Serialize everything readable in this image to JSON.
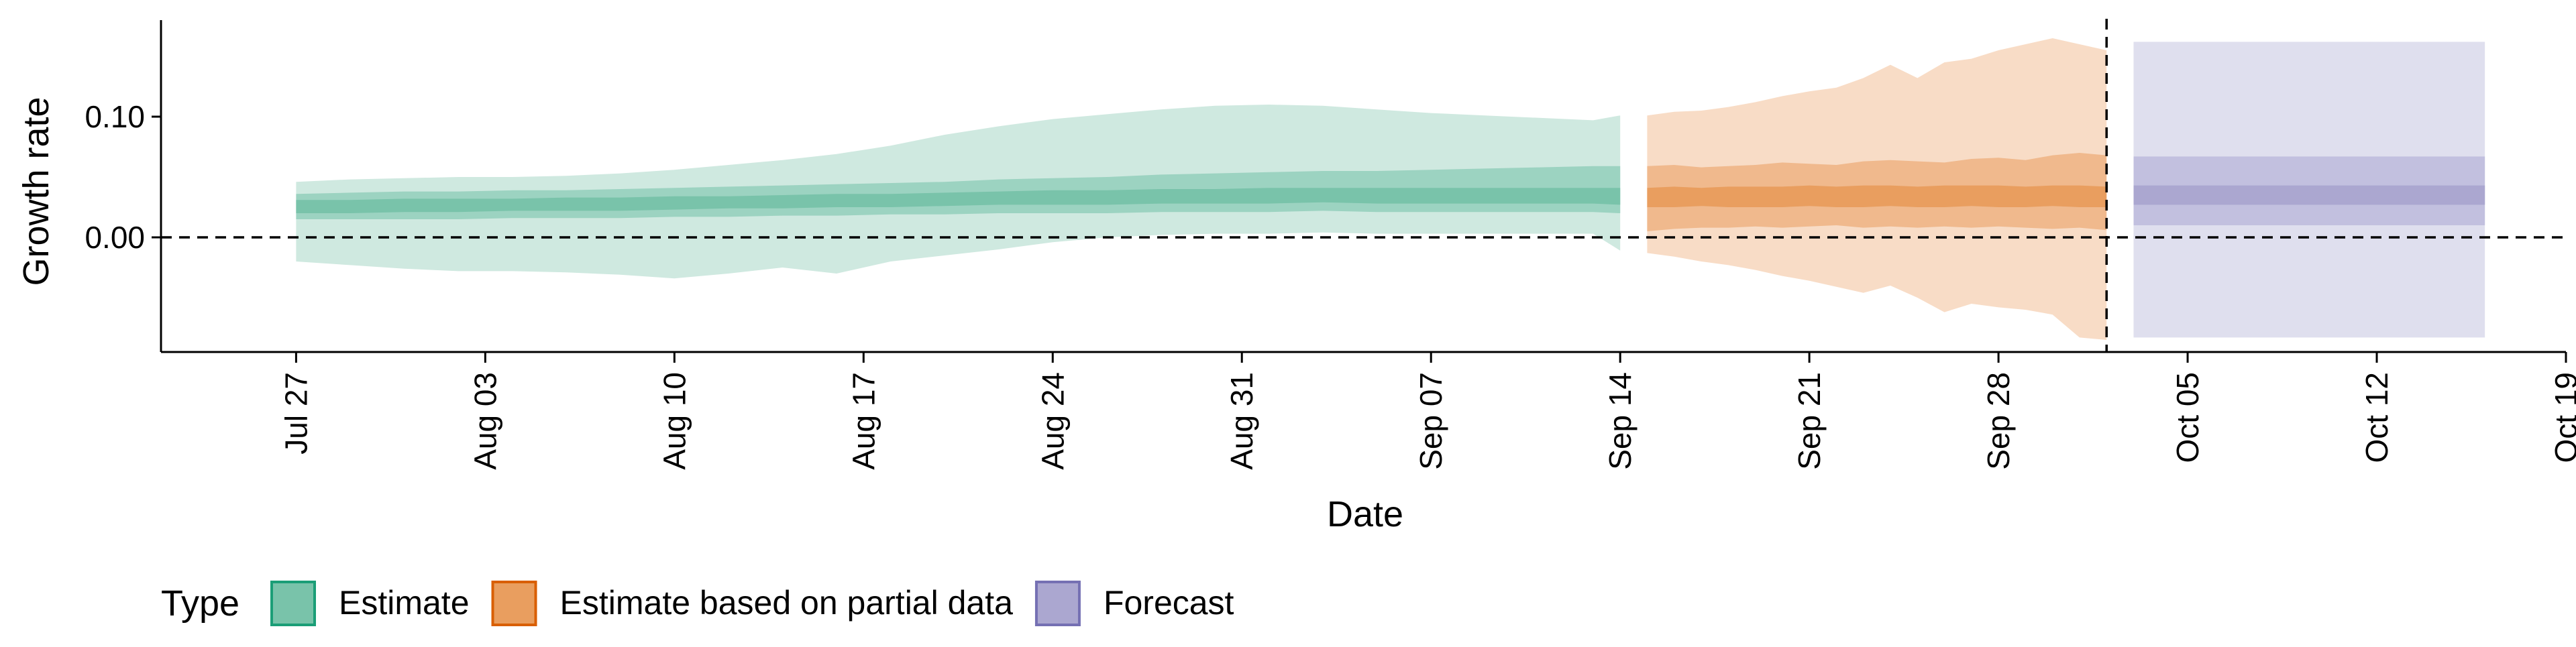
{
  "chart_data": {
    "type": "area",
    "xlabel": "Date",
    "ylabel": "Growth rate",
    "x_type": "date",
    "xlim": [
      "2020-07-22",
      "2020-10-19"
    ],
    "ylim": [
      -0.095,
      0.18
    ],
    "x_ticks": [
      "2020-07-27",
      "2020-08-03",
      "2020-08-10",
      "2020-08-17",
      "2020-08-24",
      "2020-08-31",
      "2020-09-07",
      "2020-09-14",
      "2020-09-21",
      "2020-09-28",
      "2020-10-05",
      "2020-10-12",
      "2020-10-19"
    ],
    "x_tick_labels": [
      "Jul 27",
      "Aug 03",
      "Aug 10",
      "Aug 17",
      "Aug 24",
      "Aug 31",
      "Sep 07",
      "Sep 14",
      "Sep 21",
      "Sep 28",
      "Oct 05",
      "Oct 12",
      "Oct 19"
    ],
    "y_ticks": [
      0.0,
      0.1
    ],
    "y_tick_labels": [
      "0.00",
      "0.10"
    ],
    "hline": 0.0,
    "vline": "2020-10-02",
    "grid": false,
    "legend": {
      "title": "Type",
      "position": "bottom-left",
      "entries": [
        "Estimate",
        "Estimate based on partial data",
        "Forecast"
      ]
    },
    "series": [
      {
        "name": "Estimate",
        "color": "#1b9e77",
        "band_colors": [
          "#cfe9e0",
          "#9cd3c1",
          "#79c3aa"
        ],
        "start": "2020-07-27",
        "end": "2020-09-14",
        "step_days": 2,
        "outer_lower": [
          -0.02,
          -0.023,
          -0.026,
          -0.028,
          -0.028,
          -0.029,
          -0.031,
          -0.034,
          -0.03,
          -0.025,
          -0.03,
          -0.02,
          -0.015,
          -0.01,
          -0.004,
          0.0,
          0.002,
          0.003,
          0.003,
          0.004,
          0.003,
          0.003,
          0.003,
          0.003,
          0.003,
          -0.011
        ],
        "outer_upper": [
          0.046,
          0.048,
          0.049,
          0.05,
          0.05,
          0.051,
          0.053,
          0.056,
          0.06,
          0.064,
          0.069,
          0.076,
          0.085,
          0.092,
          0.098,
          0.102,
          0.106,
          0.109,
          0.11,
          0.109,
          0.106,
          0.103,
          0.101,
          0.099,
          0.097,
          0.101
        ],
        "mid_lower": [
          0.015,
          0.015,
          0.015,
          0.015,
          0.016,
          0.016,
          0.016,
          0.017,
          0.017,
          0.018,
          0.018,
          0.019,
          0.019,
          0.02,
          0.02,
          0.02,
          0.021,
          0.021,
          0.021,
          0.022,
          0.021,
          0.021,
          0.021,
          0.021,
          0.021,
          0.02
        ],
        "mid_upper": [
          0.036,
          0.037,
          0.038,
          0.038,
          0.039,
          0.039,
          0.04,
          0.041,
          0.042,
          0.043,
          0.044,
          0.045,
          0.046,
          0.048,
          0.049,
          0.05,
          0.052,
          0.053,
          0.054,
          0.055,
          0.055,
          0.056,
          0.057,
          0.058,
          0.059,
          0.059
        ],
        "inner_lower": [
          0.02,
          0.02,
          0.021,
          0.021,
          0.022,
          0.022,
          0.022,
          0.023,
          0.024,
          0.024,
          0.025,
          0.025,
          0.026,
          0.027,
          0.027,
          0.027,
          0.028,
          0.028,
          0.028,
          0.029,
          0.028,
          0.028,
          0.028,
          0.028,
          0.028,
          0.027
        ],
        "inner_upper": [
          0.031,
          0.031,
          0.032,
          0.032,
          0.032,
          0.033,
          0.033,
          0.034,
          0.034,
          0.035,
          0.036,
          0.036,
          0.037,
          0.038,
          0.039,
          0.039,
          0.04,
          0.04,
          0.041,
          0.041,
          0.041,
          0.041,
          0.041,
          0.041,
          0.041,
          0.041
        ]
      },
      {
        "name": "Estimate based on partial data",
        "color": "#d95f02",
        "band_colors": [
          "#f8dcc6",
          "#f0b98d",
          "#e99e5f"
        ],
        "start": "2020-09-15",
        "end": "2020-10-02",
        "step_days": 1,
        "outer_lower": [
          -0.013,
          -0.016,
          -0.02,
          -0.023,
          -0.027,
          -0.032,
          -0.036,
          -0.041,
          -0.046,
          -0.04,
          -0.05,
          -0.062,
          -0.055,
          -0.058,
          -0.06,
          -0.064,
          -0.083,
          -0.085
        ],
        "outer_upper": [
          0.101,
          0.104,
          0.105,
          0.108,
          0.112,
          0.117,
          0.121,
          0.124,
          0.132,
          0.143,
          0.132,
          0.145,
          0.148,
          0.155,
          0.16,
          0.165,
          0.16,
          0.155
        ],
        "mid_lower": [
          0.005,
          0.007,
          0.008,
          0.008,
          0.009,
          0.008,
          0.009,
          0.01,
          0.008,
          0.009,
          0.008,
          0.009,
          0.008,
          0.009,
          0.008,
          0.007,
          0.008,
          0.006
        ],
        "mid_upper": [
          0.059,
          0.06,
          0.058,
          0.059,
          0.06,
          0.062,
          0.061,
          0.06,
          0.063,
          0.064,
          0.063,
          0.062,
          0.065,
          0.066,
          0.064,
          0.068,
          0.07,
          0.068
        ],
        "inner_lower": [
          0.025,
          0.025,
          0.026,
          0.025,
          0.025,
          0.025,
          0.026,
          0.025,
          0.025,
          0.026,
          0.025,
          0.025,
          0.026,
          0.025,
          0.025,
          0.026,
          0.025,
          0.025
        ],
        "inner_upper": [
          0.041,
          0.042,
          0.041,
          0.042,
          0.042,
          0.042,
          0.043,
          0.042,
          0.043,
          0.043,
          0.042,
          0.043,
          0.043,
          0.043,
          0.042,
          0.043,
          0.043,
          0.042
        ]
      },
      {
        "name": "Forecast",
        "color": "#7570b3",
        "band_colors": [
          "#dfdfee",
          "#c2c0df",
          "#aba7d0"
        ],
        "start": "2020-10-03",
        "end": "2020-10-16",
        "outer": [
          -0.083,
          0.162
        ],
        "mid": [
          0.01,
          0.067
        ],
        "inner": [
          0.027,
          0.043
        ]
      }
    ]
  }
}
